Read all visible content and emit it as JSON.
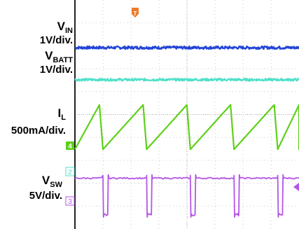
{
  "chart_data": {
    "type": "line",
    "title": "",
    "trigger_marker": "T",
    "grid": "dotted 8x10 divisions",
    "series": [
      {
        "name": "V_IN",
        "label_main": "V",
        "label_sub": "IN",
        "scale": "1V/div.",
        "color": "#2244d8",
        "shape": "flat",
        "level_div": 7.92,
        "noise_div": 0.06,
        "channel": ""
      },
      {
        "name": "V_BATT",
        "label_main": "V",
        "label_sub": "BATT",
        "scale": "1V/div.",
        "color": "#4fe0c8",
        "shape": "flat",
        "level_div": 6.52,
        "noise_div": 0.05,
        "channel": "2"
      },
      {
        "name": "I_L",
        "label_main": "I",
        "label_sub": "L",
        "scale": "500mA/div.",
        "color": "#5ed01a",
        "shape": "sawtooth",
        "low_div": 3.48,
        "high_div": 5.42,
        "period_div": 1.56,
        "first_peak_div": 1.0,
        "channel": "4"
      },
      {
        "name": "V_SW",
        "label_main": "V",
        "label_sub": "SW",
        "scale": "5V/div.",
        "color": "#b455e6",
        "shape": "pulse",
        "high_div": 2.22,
        "low_div": 0.62,
        "period_div": 1.56,
        "first_fall_div": 1.0,
        "low_width_div": 0.17,
        "channel": "3"
      }
    ]
  }
}
